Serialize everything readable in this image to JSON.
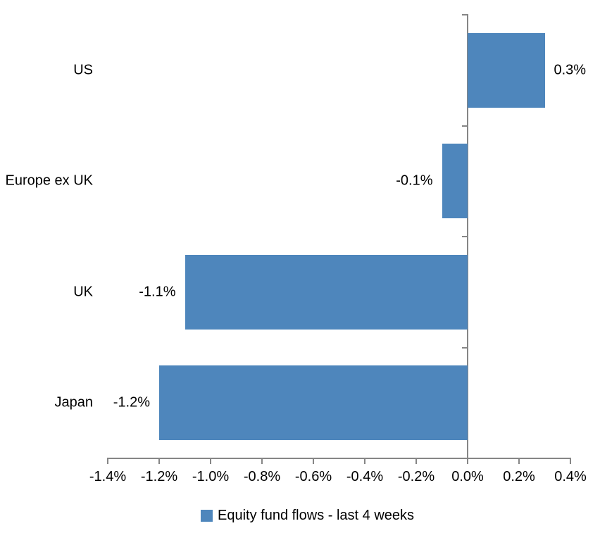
{
  "chart_data": {
    "type": "bar",
    "orientation": "horizontal",
    "title": "",
    "xlabel": "",
    "ylabel": "",
    "grid": false,
    "categories": [
      "US",
      "Europe ex UK",
      "UK",
      "Japan"
    ],
    "series": [
      {
        "name": "Equity fund flows - last 4 weeks",
        "values": [
          0.3,
          -0.1,
          -1.1,
          -1.2
        ],
        "data_labels": [
          "0.3%",
          "-0.1%",
          "-1.1%",
          "-1.2%"
        ],
        "color": "#4E86BC"
      }
    ],
    "x_axis": {
      "min": -1.4,
      "max": 0.4,
      "step": 0.2,
      "tick_labels": [
        "-1.4%",
        "-1.2%",
        "-1.0%",
        "-0.8%",
        "-0.6%",
        "-0.4%",
        "-0.2%",
        "0.0%",
        "0.2%",
        "0.4%"
      ]
    },
    "legend": {
      "position": "bottom",
      "entries": [
        {
          "label": "Equity fund flows - last 4 weeks",
          "color": "#4E86BC"
        }
      ]
    },
    "colors": {
      "bar": "#4E86BC",
      "axis": "#868686",
      "text": "#000000",
      "background": "#FFFFFF"
    }
  }
}
